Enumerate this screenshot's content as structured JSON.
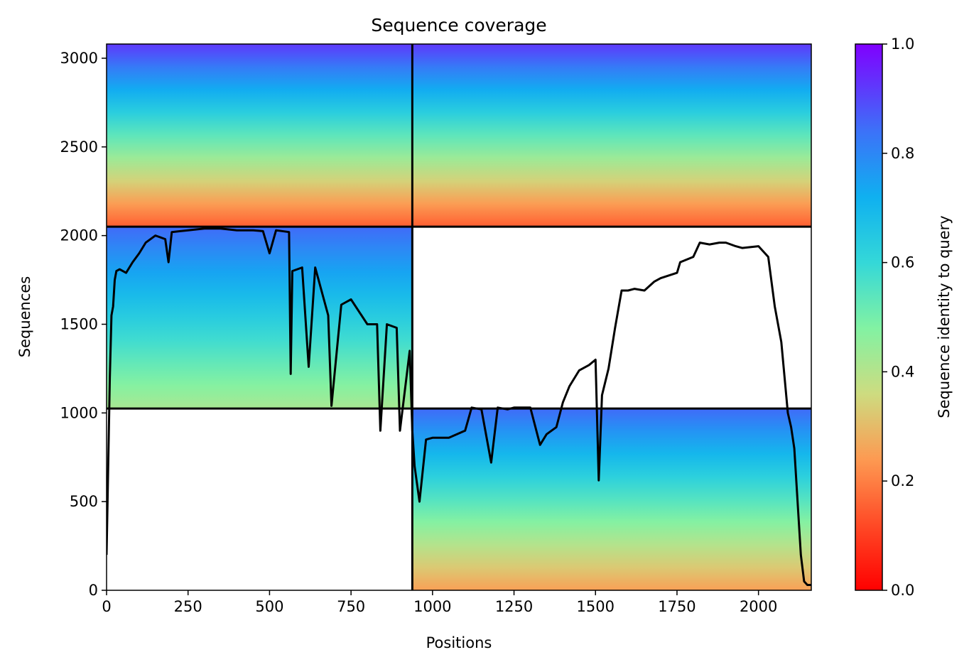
{
  "chart_data": {
    "type": "heatmap",
    "title": "Sequence coverage",
    "xlabel": "Positions",
    "ylabel": "Sequences",
    "xlim": [
      0,
      2162
    ],
    "ylim": [
      0,
      3080
    ],
    "xticks": [
      0,
      250,
      500,
      750,
      1000,
      1250,
      1500,
      1750,
      2000
    ],
    "yticks": [
      0,
      500,
      1000,
      1500,
      2000,
      2500,
      3000
    ],
    "colorbar": {
      "label": "Sequence identity to query",
      "range": [
        0,
        1
      ],
      "ticks": [
        0.0,
        0.2,
        0.4,
        0.6,
        0.8,
        1.0
      ],
      "tick_labels": [
        "0.0",
        "0.2",
        "0.4",
        "0.6",
        "0.8",
        "1.0"
      ],
      "colormap": "rainbow_r"
    },
    "chain_boundaries": {
      "x": [
        938
      ],
      "y": [
        1025,
        2050
      ]
    },
    "blocks": [
      {
        "x": [
          0,
          938
        ],
        "y": [
          2050,
          3080
        ],
        "identity_top": 0.92,
        "identity_bottom": 0.15,
        "note": ""
      },
      {
        "x": [
          938,
          2162
        ],
        "y": [
          2050,
          3080
        ],
        "identity_top": 0.92,
        "identity_bottom": 0.15,
        "note": ""
      },
      {
        "x": [
          0,
          938
        ],
        "y": [
          1025,
          2050
        ],
        "identity_top": 0.85,
        "identity_bottom": 0.42,
        "note": ""
      },
      {
        "x": [
          938,
          2162
        ],
        "y": [
          0,
          1025
        ],
        "identity_top": 0.85,
        "identity_bottom": 0.25,
        "note": ""
      }
    ],
    "coverage_line": {
      "color": "#000000",
      "x": [
        0,
        5,
        10,
        15,
        20,
        25,
        30,
        40,
        50,
        60,
        70,
        80,
        100,
        120,
        150,
        180,
        190,
        200,
        250,
        300,
        350,
        400,
        450,
        480,
        500,
        520,
        560,
        565,
        570,
        600,
        620,
        640,
        680,
        690,
        720,
        730,
        750,
        800,
        830,
        840,
        860,
        890,
        900,
        930,
        938,
        945,
        960,
        980,
        1000,
        1050,
        1100,
        1120,
        1150,
        1180,
        1200,
        1230,
        1250,
        1300,
        1330,
        1350,
        1380,
        1400,
        1420,
        1450,
        1480,
        1500,
        1510,
        1520,
        1540,
        1560,
        1580,
        1600,
        1620,
        1650,
        1680,
        1700,
        1750,
        1760,
        1800,
        1820,
        1850,
        1880,
        1900,
        1930,
        1950,
        2000,
        2030,
        2050,
        2070,
        2080,
        2090,
        2100,
        2110,
        2120,
        2130,
        2140,
        2150,
        2162
      ],
      "y": [
        200,
        700,
        1200,
        1550,
        1600,
        1750,
        1800,
        1810,
        1800,
        1790,
        1820,
        1850,
        1900,
        1960,
        2000,
        1980,
        1850,
        2020,
        2030,
        2040,
        2040,
        2030,
        2030,
        2025,
        1900,
        2030,
        2020,
        1220,
        1800,
        1820,
        1260,
        1820,
        1550,
        1040,
        1610,
        1620,
        1640,
        1500,
        1500,
        900,
        1500,
        1480,
        900,
        1350,
        900,
        700,
        500,
        850,
        860,
        860,
        900,
        1030,
        1020,
        720,
        1030,
        1020,
        1030,
        1030,
        820,
        880,
        920,
        1060,
        1150,
        1240,
        1270,
        1300,
        620,
        1100,
        1250,
        1480,
        1690,
        1690,
        1700,
        1690,
        1740,
        1760,
        1790,
        1850,
        1880,
        1960,
        1950,
        1960,
        1960,
        1940,
        1930,
        1940,
        1880,
        1600,
        1400,
        1200,
        1000,
        920,
        800,
        500,
        200,
        50,
        30,
        30
      ]
    }
  }
}
